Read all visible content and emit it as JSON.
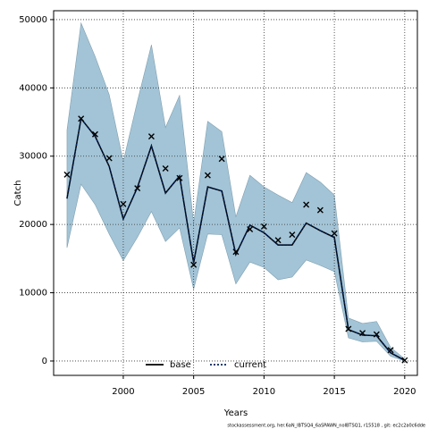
{
  "chart_data": {
    "type": "line",
    "x_label": "Years",
    "y_label": "Catch",
    "footnote": "stockassessment.org, her.6aN_IBTSQ4_6aSPAWN_noIBTSQ1, r15518 , git: ec2c2a0c6dde",
    "x": [
      1996,
      1997,
      1998,
      1999,
      2000,
      2001,
      2002,
      2003,
      2004,
      2005,
      2006,
      2007,
      2008,
      2009,
      2010,
      2011,
      2012,
      2013,
      2014,
      2015,
      2016,
      2017,
      2018,
      2019,
      2020
    ],
    "series": [
      {
        "name": "base",
        "color": "#000000",
        "dash": "none",
        "values": [
          23800,
          35500,
          32900,
          28500,
          20800,
          25400,
          31500,
          24600,
          27100,
          14400,
          25500,
          24900,
          15600,
          19900,
          18800,
          17000,
          17000,
          20200,
          19100,
          18100,
          4600,
          3800,
          3700,
          1200,
          100
        ]
      },
      {
        "name": "current",
        "color": "#00205b",
        "dash": "2 2",
        "values": [
          23800,
          35500,
          32900,
          28500,
          20800,
          25400,
          31500,
          24600,
          27100,
          14400,
          25500,
          24900,
          15600,
          19900,
          18800,
          17000,
          17000,
          20200,
          19100,
          18100,
          4600,
          3800,
          3700,
          1200,
          100
        ]
      }
    ],
    "band": {
      "color": "#a3c4d6",
      "upper": [
        33800,
        49500,
        44600,
        39000,
        29200,
        38000,
        46300,
        34200,
        38900,
        20200,
        35100,
        33600,
        21100,
        27200,
        25500,
        24300,
        23200,
        27600,
        26200,
        24300,
        6300,
        5500,
        5800,
        2000,
        300
      ],
      "lower": [
        16600,
        25900,
        22900,
        18600,
        14700,
        18100,
        21900,
        17500,
        19500,
        10500,
        18600,
        18500,
        11300,
        14500,
        13700,
        11900,
        12300,
        14800,
        14000,
        13100,
        3400,
        2800,
        2900,
        700,
        0
      ]
    },
    "observations": [
      27300,
      35500,
      33200,
      29700,
      23000,
      25300,
      32900,
      28200,
      26800,
      14100,
      27200,
      29600,
      16000,
      19300,
      19700,
      17700,
      18500,
      22900,
      22100,
      18700,
      4700,
      4100,
      3900,
      1600,
      100
    ],
    "xlim": [
      1995.05,
      2020.9
    ],
    "ylim": [
      -2100,
      51300
    ],
    "xticks": [
      2000,
      2005,
      2010,
      2015,
      2020
    ],
    "yticks": [
      0,
      10000,
      20000,
      30000,
      40000,
      50000
    ],
    "grid": true,
    "legend": "bottom"
  }
}
